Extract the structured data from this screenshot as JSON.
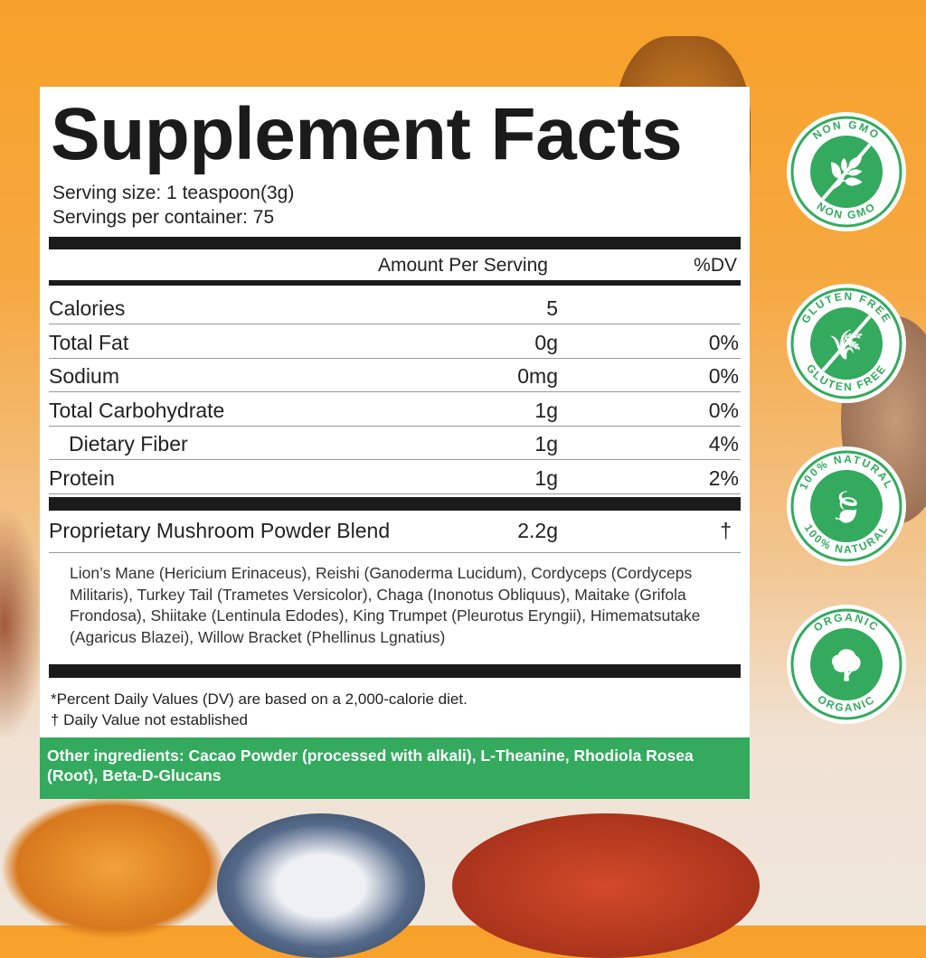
{
  "label": {
    "title": "Supplement Facts",
    "serving_size": "Serving size: 1 teaspoon(3g)",
    "servings_per_container": "Servings per container: 75",
    "amount_header": "Amount Per Serving",
    "dv_header": "%DV",
    "rows": [
      {
        "name": "Calories",
        "amount": "5",
        "dv": ""
      },
      {
        "name": "Total Fat",
        "amount": "0g",
        "dv": "0%"
      },
      {
        "name": "Sodium",
        "amount": "0mg",
        "dv": "0%"
      },
      {
        "name": "Total Carbohydrate",
        "amount": "1g",
        "dv": "0%"
      },
      {
        "name": "Dietary Fiber",
        "amount": "1g",
        "dv": "4%"
      },
      {
        "name": "Protein",
        "amount": "1g",
        "dv": "2%"
      }
    ],
    "blend": {
      "name": "Proprietary Mushroom Powder Blend",
      "amount": "2.2g",
      "dv": "†"
    },
    "blend_ingredients": "Lion’s Mane (Hericium Erinaceus), Reishi (Ganoderma Lucidum), Cordyceps (Cordyceps Militaris), Turkey Tail (Trametes Versicolor), Chaga (Inonotus Obliquus), Maitake (Grifola Frondosa), Shiitake (Lentinula Edodes), King Trumpet (Pleurotus Eryngii), Himematsutake (Agaricus Blazei), Willow Bracket (Phellinus Lgnatius)",
    "footnote_dv": "*Percent Daily Values (DV) are based on a 2,000-calorie diet.",
    "footnote_dagger": "† Daily Value not established",
    "other_ingredients": "Other ingredients: Cacao Powder (processed with alkali), L-Theanine, Rhodiola Rosea (Root), Beta-D-Glucans"
  },
  "badges": [
    {
      "text": "NON GMO",
      "icon": "leaf-branch-crossed-icon"
    },
    {
      "text": "GLUTEN FREE",
      "icon": "wheat-crossed-icon"
    },
    {
      "text": "100% NATURAL",
      "icon": "leaf-icon"
    },
    {
      "text": "ORGANIC",
      "icon": "tree-icon"
    }
  ],
  "colors": {
    "green": "#33aa5e",
    "orange": "#f7a12a",
    "ink": "#1b1b1b"
  }
}
